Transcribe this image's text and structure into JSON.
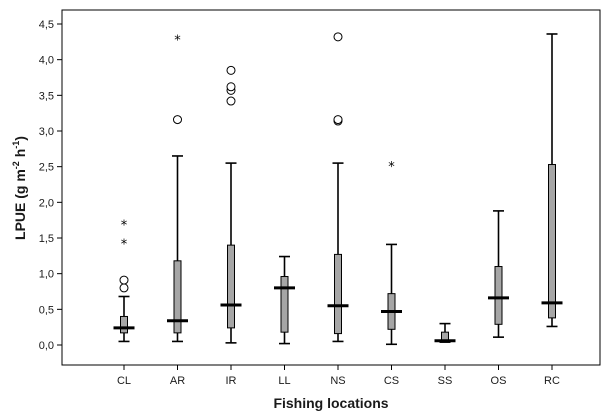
{
  "chart_data": {
    "type": "boxplot",
    "xlabel": "Fishing locations",
    "ylabel": {
      "main": "LPUE (g m",
      "sup1": "-2",
      "mid": " h",
      "sup2": "-1",
      "end": ")"
    },
    "ylim": [
      0.0,
      4.5
    ],
    "yticks": [
      0.0,
      0.5,
      1.0,
      1.5,
      2.0,
      2.5,
      3.0,
      3.5,
      4.0,
      4.5
    ],
    "ytick_labels": [
      "0,0",
      "0,5",
      "1,0",
      "1,5",
      "2,0",
      "2,5",
      "3,0",
      "3,5",
      "4,0",
      "4,5"
    ],
    "grid": false,
    "box_color": "#a6a6a6",
    "categories": [
      "CL",
      "AR",
      "IR",
      "LL",
      "NS",
      "CS",
      "SS",
      "OS",
      "RC"
    ],
    "boxes": [
      {
        "category": "CL",
        "whisker_low": 0.05,
        "q1": 0.17,
        "median": 0.24,
        "q3": 0.4,
        "whisker_high": 0.68,
        "outliers": [
          0.8,
          0.91
        ],
        "extremes": [
          1.42,
          1.69
        ]
      },
      {
        "category": "AR",
        "whisker_low": 0.05,
        "q1": 0.17,
        "median": 0.34,
        "q3": 1.18,
        "whisker_high": 2.65,
        "outliers": [
          3.16
        ],
        "extremes": [
          4.28
        ]
      },
      {
        "category": "IR",
        "whisker_low": 0.03,
        "q1": 0.24,
        "median": 0.56,
        "q3": 1.4,
        "whisker_high": 2.55,
        "outliers": [
          3.42,
          3.57,
          3.62,
          3.85
        ],
        "extremes": []
      },
      {
        "category": "LL",
        "whisker_low": 0.02,
        "q1": 0.18,
        "median": 0.8,
        "q3": 0.96,
        "whisker_high": 1.24,
        "outliers": [],
        "extremes": []
      },
      {
        "category": "NS",
        "whisker_low": 0.05,
        "q1": 0.16,
        "median": 0.55,
        "q3": 1.27,
        "whisker_high": 2.55,
        "outliers": [
          3.14,
          3.16,
          4.32
        ],
        "extremes": []
      },
      {
        "category": "CS",
        "whisker_low": 0.01,
        "q1": 0.22,
        "median": 0.47,
        "q3": 0.72,
        "whisker_high": 1.41,
        "outliers": [],
        "extremes": [
          2.51
        ]
      },
      {
        "category": "SS",
        "whisker_low": 0.04,
        "q1": 0.05,
        "median": 0.06,
        "q3": 0.18,
        "whisker_high": 0.3,
        "outliers": [],
        "extremes": []
      },
      {
        "category": "OS",
        "whisker_low": 0.11,
        "q1": 0.29,
        "median": 0.66,
        "q3": 1.1,
        "whisker_high": 1.88,
        "outliers": [],
        "extremes": []
      },
      {
        "category": "RC",
        "whisker_low": 0.26,
        "q1": 0.38,
        "median": 0.59,
        "q3": 2.53,
        "whisker_high": 4.36,
        "outliers": [],
        "extremes": []
      }
    ]
  }
}
